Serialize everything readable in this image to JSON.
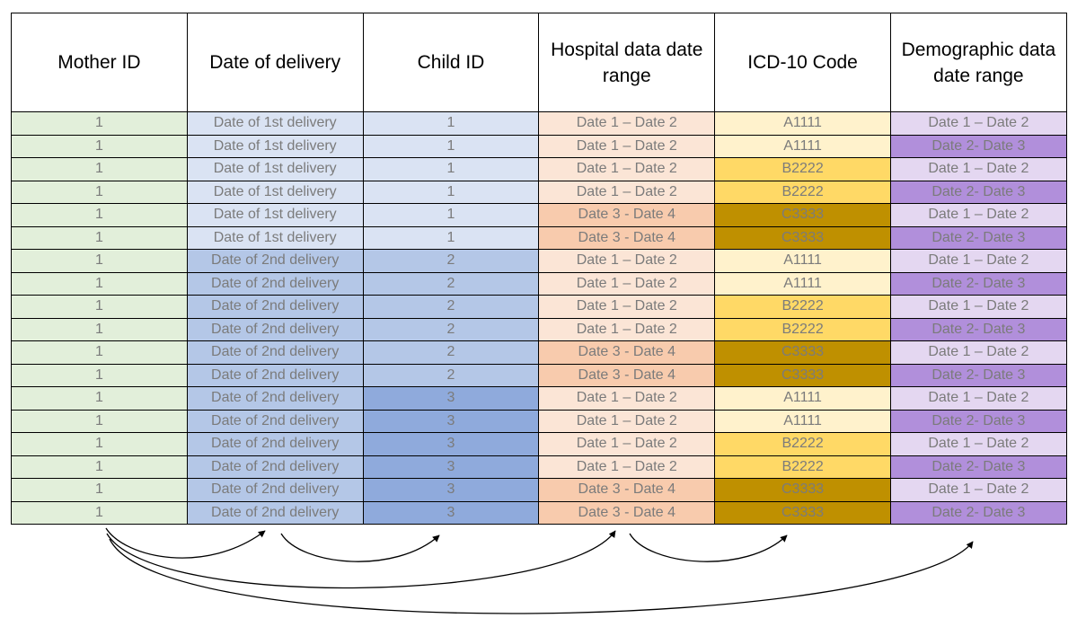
{
  "headers": [
    "Mother ID",
    "Date of delivery",
    "Child ID",
    "Hospital data date range",
    "ICD-10 Code",
    "Demographic data date range"
  ],
  "rows": [
    [
      "1",
      "Date of 1st delivery",
      "1",
      "Date 1 – Date 2",
      "A1111",
      "Date 1 – Date 2"
    ],
    [
      "1",
      "Date of 1st delivery",
      "1",
      "Date 1 – Date 2",
      "A1111",
      "Date 2- Date 3"
    ],
    [
      "1",
      "Date of 1st delivery",
      "1",
      "Date 1 – Date 2",
      "B2222",
      "Date 1 – Date 2"
    ],
    [
      "1",
      "Date of 1st delivery",
      "1",
      "Date 1 – Date 2",
      "B2222",
      "Date 2- Date 3"
    ],
    [
      "1",
      "Date of 1st delivery",
      "1",
      "Date 3 - Date 4",
      "C3333",
      "Date 1 – Date 2"
    ],
    [
      "1",
      "Date of 1st delivery",
      "1",
      "Date 3 - Date 4",
      "C3333",
      "Date 2- Date 3"
    ],
    [
      "1",
      "Date of 2nd delivery",
      "2",
      "Date 1 – Date 2",
      "A1111",
      "Date 1 – Date 2"
    ],
    [
      "1",
      "Date of 2nd delivery",
      "2",
      "Date 1 – Date 2",
      "A1111",
      "Date 2- Date 3"
    ],
    [
      "1",
      "Date of 2nd delivery",
      "2",
      "Date 1 – Date 2",
      "B2222",
      "Date 1 – Date 2"
    ],
    [
      "1",
      "Date of 2nd delivery",
      "2",
      "Date 1 – Date 2",
      "B2222",
      "Date 2- Date 3"
    ],
    [
      "1",
      "Date of 2nd delivery",
      "2",
      "Date 3 - Date 4",
      "C3333",
      "Date 1 – Date 2"
    ],
    [
      "1",
      "Date of 2nd delivery",
      "2",
      "Date 3 - Date 4",
      "C3333",
      "Date 2- Date 3"
    ],
    [
      "1",
      "Date of 2nd delivery",
      "3",
      "Date 1 – Date 2",
      "A1111",
      "Date 1 – Date 2"
    ],
    [
      "1",
      "Date of 2nd delivery",
      "3",
      "Date 1 – Date 2",
      "A1111",
      "Date 2- Date 3"
    ],
    [
      "1",
      "Date of 2nd delivery",
      "3",
      "Date 1 – Date 2",
      "B2222",
      "Date 1 – Date 2"
    ],
    [
      "1",
      "Date of 2nd delivery",
      "3",
      "Date 1 – Date 2",
      "B2222",
      "Date 2- Date 3"
    ],
    [
      "1",
      "Date of 2nd delivery",
      "3",
      "Date 3 - Date 4",
      "C3333",
      "Date 1 – Date 2"
    ],
    [
      "1",
      "Date of 2nd delivery",
      "3",
      "Date 3 - Date 4",
      "C3333",
      "Date 2- Date 3"
    ]
  ],
  "colors": {
    "mother_id": "#e2efda",
    "delivery_1st": "#dae3f3",
    "delivery_2nd": "#b4c7e7",
    "child_1": "#dae3f3",
    "child_2": "#b4c7e7",
    "child_3": "#8faadc",
    "hospital_range_1_2": "#fbe5d6",
    "hospital_range_3_4": "#f8cbad",
    "icd_A1111": "#fff2cc",
    "icd_B2222": "#ffd966",
    "icd_C3333": "#bf9000",
    "demo_range_1_2": "#e4d7f1",
    "demo_range_2_3": "#b18fdb",
    "cell_text": "#7b7b7b",
    "arrow": "#000000"
  },
  "links": [
    {
      "from": "Mother ID",
      "to": "Date of delivery"
    },
    {
      "from": "Date of delivery",
      "to": "Child ID"
    },
    {
      "from": "Mother ID",
      "to": "Hospital data date range"
    },
    {
      "from": "Hospital data date range",
      "to": "ICD-10 Code"
    },
    {
      "from": "Mother ID",
      "to": "Demographic data date range"
    }
  ]
}
